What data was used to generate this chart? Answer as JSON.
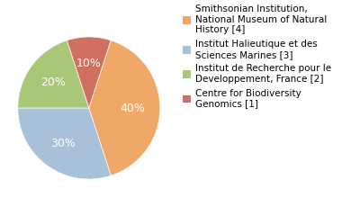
{
  "labels": [
    "Smithsonian Institution,\nNational Museum of Natural\nHistory [4]",
    "Institut Halieutique et des\nSciences Marines [3]",
    "Institut de Recherche pour le\nDeveloppement, France [2]",
    "Centre for Biodiversity\nGeномics [1]"
  ],
  "labels_clean": [
    "Smithsonian Institution,\nNational Museum of Natural\nHistory [4]",
    "Institut Halieutique et des\nSciences Marines [3]",
    "Institut de Recherche pour le\nDeveloppement, France [2]",
    "Centre for Biodiversity\nGenomics [1]"
  ],
  "values": [
    40,
    30,
    20,
    10
  ],
  "colors": [
    "#f0a868",
    "#a8c0d8",
    "#a8c878",
    "#d07060"
  ],
  "pct_labels": [
    "40%",
    "30%",
    "20%",
    "10%"
  ],
  "startangle": 72,
  "background_color": "#ffffff",
  "legend_fontsize": 7.5,
  "pct_fontsize": 9
}
